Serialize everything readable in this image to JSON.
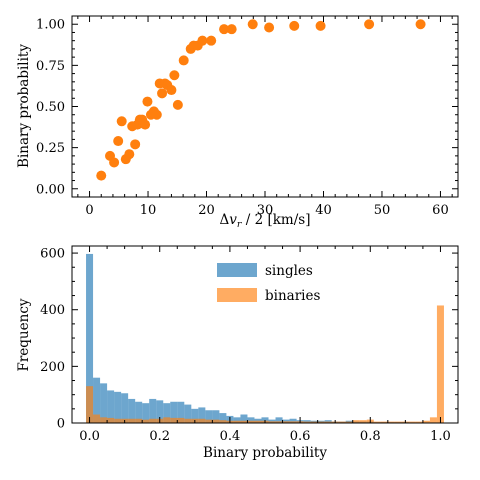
{
  "chart_data": [
    {
      "type": "scatter",
      "xlabel": "Δv_r / 2 [km/s]",
      "ylabel": "Binary probability",
      "xlim": [
        -3,
        63
      ],
      "ylim": [
        -0.05,
        1.05
      ],
      "xticks": [
        0,
        10,
        20,
        30,
        40,
        50,
        60
      ],
      "xtick_labels": [
        "0",
        "10",
        "20",
        "30",
        "40",
        "50",
        "60"
      ],
      "yticks": [
        0.0,
        0.25,
        0.5,
        0.75,
        1.0
      ],
      "ytick_labels": [
        "0.00",
        "0.25",
        "0.50",
        "0.75",
        "1.00"
      ],
      "grid": false,
      "color": "#ff7f0e",
      "points": [
        [
          2.0,
          0.08
        ],
        [
          3.5,
          0.2
        ],
        [
          4.2,
          0.16
        ],
        [
          4.9,
          0.29
        ],
        [
          5.5,
          0.41
        ],
        [
          6.2,
          0.18
        ],
        [
          6.8,
          0.21
        ],
        [
          7.3,
          0.38
        ],
        [
          7.8,
          0.27
        ],
        [
          8.2,
          0.39
        ],
        [
          8.6,
          0.42
        ],
        [
          9.0,
          0.42
        ],
        [
          9.5,
          0.39
        ],
        [
          9.9,
          0.53
        ],
        [
          10.5,
          0.45
        ],
        [
          11.0,
          0.47
        ],
        [
          11.5,
          0.45
        ],
        [
          12.0,
          0.64
        ],
        [
          12.4,
          0.58
        ],
        [
          12.9,
          0.64
        ],
        [
          13.3,
          0.63
        ],
        [
          14.0,
          0.6
        ],
        [
          14.5,
          0.69
        ],
        [
          15.1,
          0.51
        ],
        [
          16.1,
          0.78
        ],
        [
          17.3,
          0.85
        ],
        [
          17.8,
          0.87
        ],
        [
          18.5,
          0.87
        ],
        [
          19.3,
          0.9
        ],
        [
          20.8,
          0.9
        ],
        [
          23.0,
          0.97
        ],
        [
          24.3,
          0.97
        ],
        [
          27.9,
          1.0
        ],
        [
          30.7,
          0.98
        ],
        [
          35.0,
          0.99
        ],
        [
          39.5,
          0.99
        ],
        [
          47.8,
          1.0
        ],
        [
          56.6,
          1.0
        ]
      ]
    },
    {
      "type": "bar",
      "subtype": "histogram",
      "xlabel": "Binary probability",
      "ylabel": "Frequency",
      "xlim": [
        -0.05,
        1.05
      ],
      "ylim": [
        0,
        625
      ],
      "xticks": [
        0.0,
        0.2,
        0.4,
        0.6,
        0.8,
        1.0
      ],
      "xtick_labels": [
        "0.0",
        "0.2",
        "0.4",
        "0.6",
        "0.8",
        "1.0"
      ],
      "yticks": [
        0,
        200,
        400,
        600
      ],
      "ytick_labels": [
        "0",
        "200",
        "400",
        "600"
      ],
      "legend_position": "top-center",
      "bin_width": 0.02,
      "bin_start": -0.01,
      "series": [
        {
          "name": "singles",
          "color": "#1f77b4",
          "values": [
            597,
            160,
            140,
            115,
            110,
            105,
            85,
            75,
            70,
            85,
            80,
            70,
            75,
            75,
            65,
            50,
            55,
            45,
            45,
            35,
            25,
            20,
            30,
            20,
            15,
            20,
            12,
            20,
            12,
            15,
            10,
            10,
            8,
            8,
            10,
            5,
            5,
            8,
            5,
            5,
            5,
            3,
            3,
            3,
            3,
            3,
            2,
            2,
            2,
            2,
            2
          ]
        },
        {
          "name": "binaries",
          "color": "#ff7f0e",
          "values": [
            130,
            30,
            20,
            18,
            15,
            15,
            15,
            15,
            12,
            15,
            15,
            20,
            18,
            18,
            15,
            15,
            15,
            12,
            12,
            10,
            8,
            8,
            8,
            8,
            8,
            8,
            6,
            6,
            6,
            6,
            6,
            5,
            5,
            5,
            5,
            5,
            5,
            5,
            10,
            10,
            12,
            5,
            5,
            5,
            5,
            5,
            5,
            5,
            8,
            20,
            415
          ]
        }
      ]
    }
  ]
}
